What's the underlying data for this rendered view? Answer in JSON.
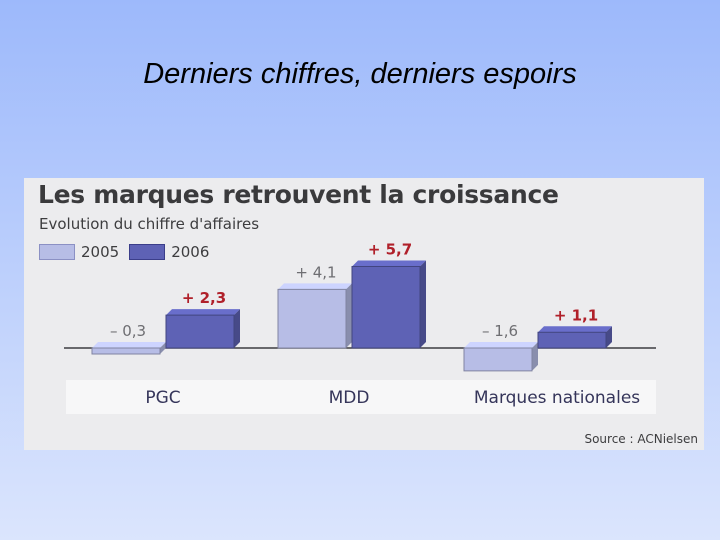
{
  "slide": {
    "title": "Derniers chiffres, derniers espoirs"
  },
  "colors": {
    "s2005": "#b7bde6",
    "s2006": "#5e62b5",
    "neg_label": "#6e6e72",
    "pos_label": "#b0202a"
  },
  "chart_data": {
    "type": "bar",
    "title": "Les marques retrouvent la croissance",
    "subtitle": "Evolution du chiffre d'affaires",
    "categories": [
      "PGC",
      "MDD",
      "Marques nationales"
    ],
    "series": [
      {
        "name": "2005",
        "values": [
          -0.3,
          4.1,
          -1.6
        ],
        "labels": [
          "– 0,3",
          "+ 4,1",
          "– 1,6"
        ]
      },
      {
        "name": "2006",
        "values": [
          2.3,
          5.7,
          1.1
        ],
        "labels": [
          "+ 2,3",
          "+ 5,7",
          "+ 1,1"
        ]
      }
    ],
    "source": "Source : ACNielsen",
    "legend": "top-left"
  }
}
